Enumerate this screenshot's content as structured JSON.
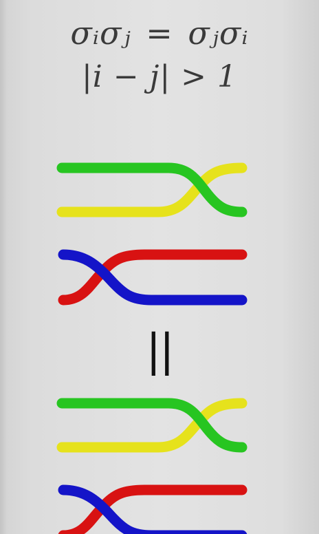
{
  "formula": {
    "main": "σᵢσⱼ = σⱼσᵢ",
    "condition": "|i − j| > 1"
  },
  "equals_symbol": "||",
  "colors": {
    "green": "#27c521",
    "yellow": "#e6e21c",
    "blue": "#1414c8",
    "red": "#d81212",
    "background": "#e0e0e0"
  },
  "diagrams": [
    {
      "name": "top-braid-pair",
      "crossings": [
        {
          "strand_over": "green",
          "strand_under": "yellow",
          "position": "right"
        },
        {
          "strand_over": "blue",
          "strand_under": "red",
          "position": "left"
        }
      ]
    },
    {
      "name": "bottom-braid-pair",
      "crossings": [
        {
          "strand_over": "green",
          "strand_under": "yellow",
          "position": "right"
        },
        {
          "strand_over": "blue",
          "strand_under": "red",
          "position": "left"
        }
      ]
    }
  ]
}
